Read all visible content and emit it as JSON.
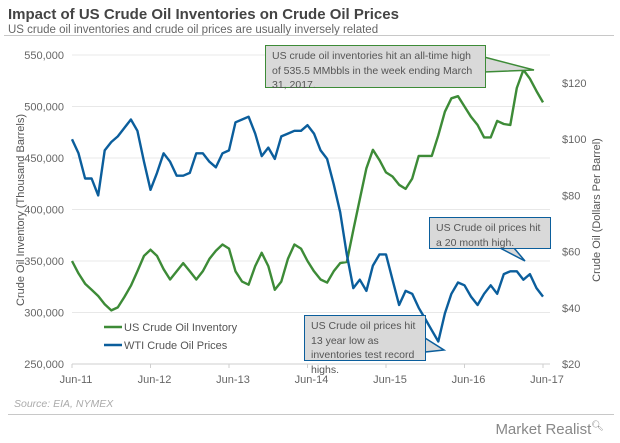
{
  "header": {
    "title": "Impact of US Crude Oil Inventories on Crude Oil Prices",
    "subtitle": "US crude oil inventories and crude oil prices are usually inversely related"
  },
  "footer": {
    "source": "Source: EIA, NYMEX",
    "brand": "Market Realist"
  },
  "chart_data": {
    "type": "line",
    "title": "Impact of US Crude Oil Inventories on Crude Oil Prices",
    "subtitle": "US crude oil inventories and crude oil prices are usually inversely related",
    "x_tick_labels": [
      "Jun-11",
      "Jun-12",
      "Jun-13",
      "Jun-14",
      "Jun-15",
      "Jun-16",
      "Jun-17"
    ],
    "y_left": {
      "label": "Crude Oil Inventory  (Thousand  Barrels)",
      "range": [
        250000,
        550000
      ],
      "ticks": [
        "250,000",
        "300,000",
        "350,000",
        "400,000",
        "450,000",
        "500,000",
        "550,000"
      ]
    },
    "y_right": {
      "label": "Crude Oil (Dollars Per Barrel)",
      "range": [
        20,
        120
      ],
      "ticks": [
        "$20",
        "$40",
        "$60",
        "$80",
        "$100",
        "$120"
      ]
    },
    "grid": true,
    "legend_position": "bottom-left",
    "x": [
      "2011-06",
      "2011-07",
      "2011-08",
      "2011-09",
      "2011-10",
      "2011-11",
      "2011-12",
      "2012-01",
      "2012-02",
      "2012-03",
      "2012-04",
      "2012-05",
      "2012-06",
      "2012-07",
      "2012-08",
      "2012-09",
      "2012-10",
      "2012-11",
      "2012-12",
      "2013-01",
      "2013-02",
      "2013-03",
      "2013-04",
      "2013-05",
      "2013-06",
      "2013-07",
      "2013-08",
      "2013-09",
      "2013-10",
      "2013-11",
      "2013-12",
      "2014-01",
      "2014-02",
      "2014-03",
      "2014-04",
      "2014-05",
      "2014-06",
      "2014-07",
      "2014-08",
      "2014-09",
      "2014-10",
      "2014-11",
      "2014-12",
      "2015-01",
      "2015-02",
      "2015-03",
      "2015-04",
      "2015-05",
      "2015-06",
      "2015-07",
      "2015-08",
      "2015-09",
      "2015-10",
      "2015-11",
      "2015-12",
      "2016-01",
      "2016-02",
      "2016-03",
      "2016-04",
      "2016-05",
      "2016-06",
      "2016-07",
      "2016-08",
      "2016-09",
      "2016-10",
      "2016-11",
      "2016-12",
      "2017-01",
      "2017-02",
      "2017-03",
      "2017-04",
      "2017-05",
      "2017-06"
    ],
    "series": [
      {
        "name": "US Crude Oil Inventory",
        "axis": "left",
        "color": "#3d8b37",
        "values": [
          350000,
          338000,
          328000,
          322000,
          316000,
          308000,
          302000,
          305000,
          315000,
          326000,
          340000,
          355000,
          361000,
          355000,
          342000,
          332000,
          340000,
          348000,
          340000,
          332000,
          340000,
          352000,
          360000,
          366000,
          362000,
          340000,
          330000,
          327000,
          345000,
          358000,
          345000,
          322000,
          330000,
          352000,
          366000,
          362000,
          350000,
          340000,
          332000,
          329000,
          340000,
          348000,
          349000,
          380000,
          410000,
          440000,
          458000,
          448000,
          436000,
          432000,
          424000,
          420000,
          430000,
          452000,
          452000,
          452000,
          472000,
          495000,
          508000,
          510000,
          500000,
          490000,
          482000,
          470000,
          470000,
          486000,
          483000,
          482000,
          518000,
          535500,
          527000,
          515000,
          504000
        ]
      },
      {
        "name": "WTI Crude Oil Prices",
        "axis": "right",
        "color": "#0b5e9c",
        "values": [
          100,
          95,
          86,
          86,
          80,
          96,
          99,
          101,
          104,
          107,
          103,
          92,
          82,
          88,
          95,
          92,
          87,
          87,
          88,
          95,
          95,
          92,
          90,
          95,
          96,
          106,
          107,
          108,
          102,
          94,
          97,
          93,
          101,
          102,
          103,
          103,
          105,
          102,
          96,
          93,
          84,
          74,
          59,
          47,
          50,
          46,
          55,
          59,
          59,
          50,
          41,
          46,
          45,
          40,
          36,
          32,
          28,
          38,
          45,
          49,
          48,
          44,
          41,
          45,
          48,
          45,
          52,
          53,
          53,
          50,
          52,
          47,
          44
        ]
      }
    ],
    "annotations": [
      {
        "text": "US crude oil inventories hit an all-time high of 535.5 MMbbls in the week ending March 31, 2017.",
        "series": "US Crude Oil Inventory"
      },
      {
        "text": "US Crude oil prices hit a 20 month high.",
        "series": "WTI Crude Oil Prices"
      },
      {
        "text": "US Crude oil prices hit 13 year low as inventories test record highs.",
        "series": "WTI Crude Oil Prices"
      }
    ]
  }
}
